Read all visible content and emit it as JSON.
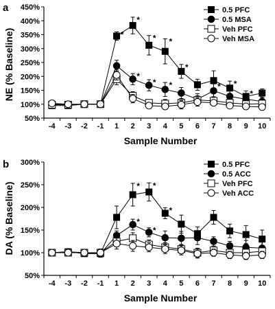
{
  "chart_data": [
    {
      "type": "line",
      "panel_label": "a",
      "xlabel": "Sample Number",
      "ylabel": "NE (% Baseline)",
      "x": [
        -4,
        -3,
        -2,
        -1,
        1,
        2,
        3,
        4,
        5,
        6,
        7,
        8,
        9,
        10
      ],
      "x_tick_labels": [
        "-4",
        "-3",
        "-2",
        "-1",
        "1",
        "2",
        "3",
        "4",
        "5",
        "6",
        "7",
        "8",
        "9",
        "10"
      ],
      "ylim": [
        50,
        450
      ],
      "y_ticks": [
        50,
        100,
        150,
        200,
        250,
        300,
        350,
        400,
        450
      ],
      "y_tick_labels": [
        "50%",
        "100%",
        "150%",
        "200%",
        "250%",
        "300%",
        "350%",
        "400%",
        "450%"
      ],
      "legend_position": "top-right",
      "series": [
        {
          "name": "0.5 PFC",
          "marker": "square-filled",
          "values": [
            95,
            95,
            100,
            100,
            345,
            383,
            312,
            290,
            218,
            170,
            185,
            158,
            128,
            140
          ],
          "errors": [
            8,
            8,
            8,
            10,
            15,
            30,
            35,
            45,
            25,
            20,
            35,
            25,
            20,
            15
          ]
        },
        {
          "name": "0.5 MSA",
          "marker": "circle-filled",
          "values": [
            100,
            98,
            100,
            100,
            238,
            190,
            168,
            153,
            140,
            118,
            148,
            128,
            118,
            110
          ],
          "errors": [
            8,
            8,
            8,
            10,
            20,
            20,
            20,
            25,
            20,
            20,
            25,
            20,
            15,
            15
          ]
        },
        {
          "name": "Veh PFC",
          "marker": "square-open",
          "values": [
            98,
            98,
            100,
            100,
            190,
            130,
            105,
            102,
            105,
            115,
            112,
            105,
            100,
            102
          ],
          "errors": [
            8,
            8,
            8,
            10,
            20,
            15,
            10,
            15,
            15,
            15,
            15,
            10,
            10,
            10
          ]
        },
        {
          "name": "Veh MSA",
          "marker": "circle-open",
          "values": [
            103,
            100,
            100,
            100,
            205,
            120,
            95,
            92,
            98,
            108,
            105,
            95,
            92,
            90
          ],
          "errors": [
            8,
            8,
            8,
            10,
            18,
            15,
            10,
            10,
            15,
            15,
            10,
            10,
            10,
            10
          ]
        }
      ],
      "annotations": [
        {
          "text": "*",
          "x": 1,
          "series": 0
        },
        {
          "text": "*",
          "x": 2,
          "series": 0
        },
        {
          "text": "*",
          "x": 3,
          "series": 0
        },
        {
          "text": "*",
          "x": 4,
          "series": 0
        },
        {
          "text": "*",
          "x": 5,
          "series": 0
        },
        {
          "text": "*",
          "x": 8,
          "series": 0
        },
        {
          "text": "*",
          "x": 9,
          "series": 0
        },
        {
          "text": "*",
          "x": 2,
          "series": 1
        },
        {
          "text": "*",
          "x": 3,
          "series": 1
        },
        {
          "text": "*",
          "x": 4,
          "series": 1
        },
        {
          "text": "*",
          "x": 7,
          "series": 1
        }
      ]
    },
    {
      "type": "line",
      "panel_label": "b",
      "xlabel": "Sample Number",
      "ylabel": "DA (% Baseline)",
      "x": [
        -4,
        -3,
        -2,
        -1,
        1,
        2,
        3,
        4,
        5,
        6,
        7,
        8,
        9,
        10
      ],
      "x_tick_labels": [
        "-4",
        "-3",
        "-2",
        "-1",
        "1",
        "2",
        "3",
        "4",
        "5",
        "6",
        "7",
        "8",
        "9",
        "10"
      ],
      "ylim": [
        50,
        300
      ],
      "y_ticks": [
        50,
        100,
        150,
        200,
        250,
        300
      ],
      "y_tick_labels": [
        "50%",
        "100%",
        "150%",
        "200%",
        "250%",
        "300%"
      ],
      "legend_position": "top-right",
      "series": [
        {
          "name": "0.5 PFC",
          "marker": "square-filled",
          "values": [
            100,
            102,
            98,
            98,
            178,
            228,
            234,
            187,
            163,
            142,
            178,
            148,
            140,
            130
          ],
          "errors": [
            5,
            5,
            5,
            8,
            25,
            25,
            20,
            12,
            20,
            15,
            15,
            15,
            20,
            20
          ]
        },
        {
          "name": "0.5 ACC",
          "marker": "circle-filled",
          "values": [
            100,
            102,
            100,
            98,
            138,
            162,
            145,
            133,
            132,
            133,
            125,
            115,
            112,
            110
          ],
          "errors": [
            5,
            5,
            5,
            8,
            10,
            12,
            10,
            15,
            15,
            15,
            10,
            10,
            15,
            15
          ]
        },
        {
          "name": "Veh PFC",
          "marker": "square-open",
          "values": [
            100,
            100,
            100,
            100,
            125,
            132,
            118,
            112,
            108,
            100,
            105,
            100,
            100,
            103
          ],
          "errors": [
            5,
            5,
            5,
            8,
            12,
            12,
            10,
            10,
            10,
            10,
            8,
            8,
            8,
            8
          ]
        },
        {
          "name": "Veh ACC",
          "marker": "circle-open",
          "values": [
            100,
            100,
            100,
            100,
            120,
            115,
            112,
            108,
            105,
            98,
            100,
            95,
            93,
            95
          ],
          "errors": [
            5,
            5,
            5,
            8,
            12,
            12,
            10,
            10,
            10,
            10,
            8,
            8,
            8,
            8
          ]
        }
      ],
      "annotations": [
        {
          "text": "*",
          "x": 2,
          "series": 0
        },
        {
          "text": "*",
          "x": 3,
          "series": 0
        },
        {
          "text": "*",
          "x": 4,
          "series": 0
        },
        {
          "text": "*",
          "x": 2,
          "series": 1
        },
        {
          "text": "*",
          "x": 3,
          "series": 1
        }
      ]
    }
  ]
}
